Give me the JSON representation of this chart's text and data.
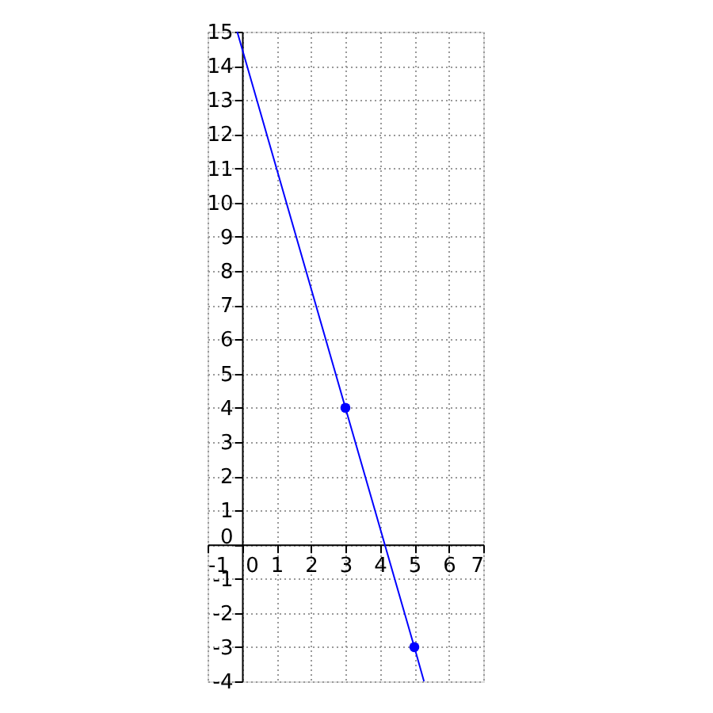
{
  "chart_data": {
    "type": "line",
    "x": [
      -0.14,
      3,
      5,
      5.28
    ],
    "series": [
      {
        "color": "#0000ff",
        "values": [
          15,
          4,
          -3,
          -4
        ],
        "marker": "none"
      },
      {
        "type": "scatter",
        "color": "#0000ff",
        "x": [
          3,
          5
        ],
        "values": [
          4,
          -3
        ],
        "marker": "circle"
      }
    ],
    "xlim": [
      -1,
      7
    ],
    "ylim": [
      -4,
      15
    ],
    "xticks": [
      -1,
      0,
      1,
      2,
      3,
      4,
      5,
      6,
      7
    ],
    "yticks": [
      -4,
      -3,
      -2,
      -1,
      0,
      1,
      2,
      3,
      4,
      5,
      6,
      7,
      8,
      9,
      10,
      11,
      12,
      13,
      14,
      15
    ],
    "grid": true
  }
}
